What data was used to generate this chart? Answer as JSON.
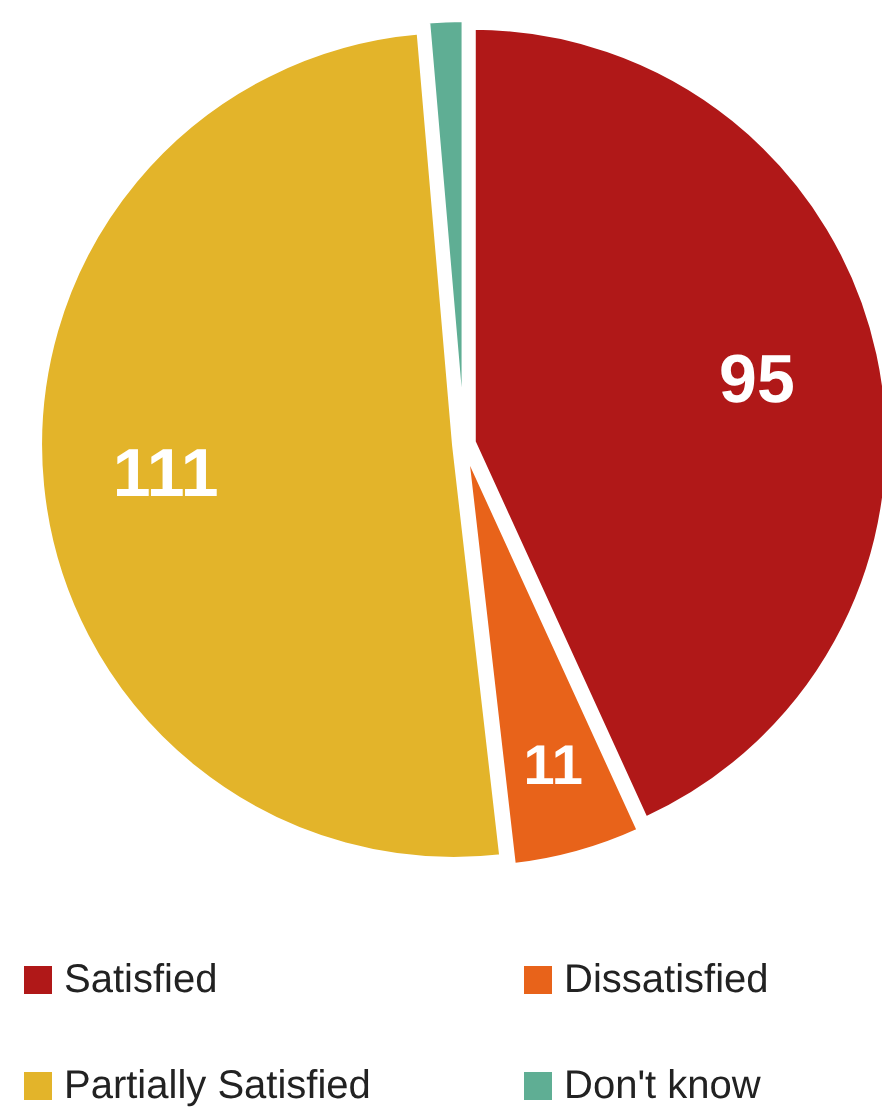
{
  "chart_data": {
    "type": "pie",
    "categories": [
      "Satisfied",
      "Dissatisfied",
      "Partially Satisfied",
      "Don't know"
    ],
    "values": [
      95,
      11,
      111,
      3
    ],
    "colors": [
      "#b01818",
      "#e8631a",
      "#e3b42a",
      "#5fae94"
    ],
    "value_labels": [
      "95",
      "11",
      "111",
      null
    ],
    "legend": "bottom"
  }
}
